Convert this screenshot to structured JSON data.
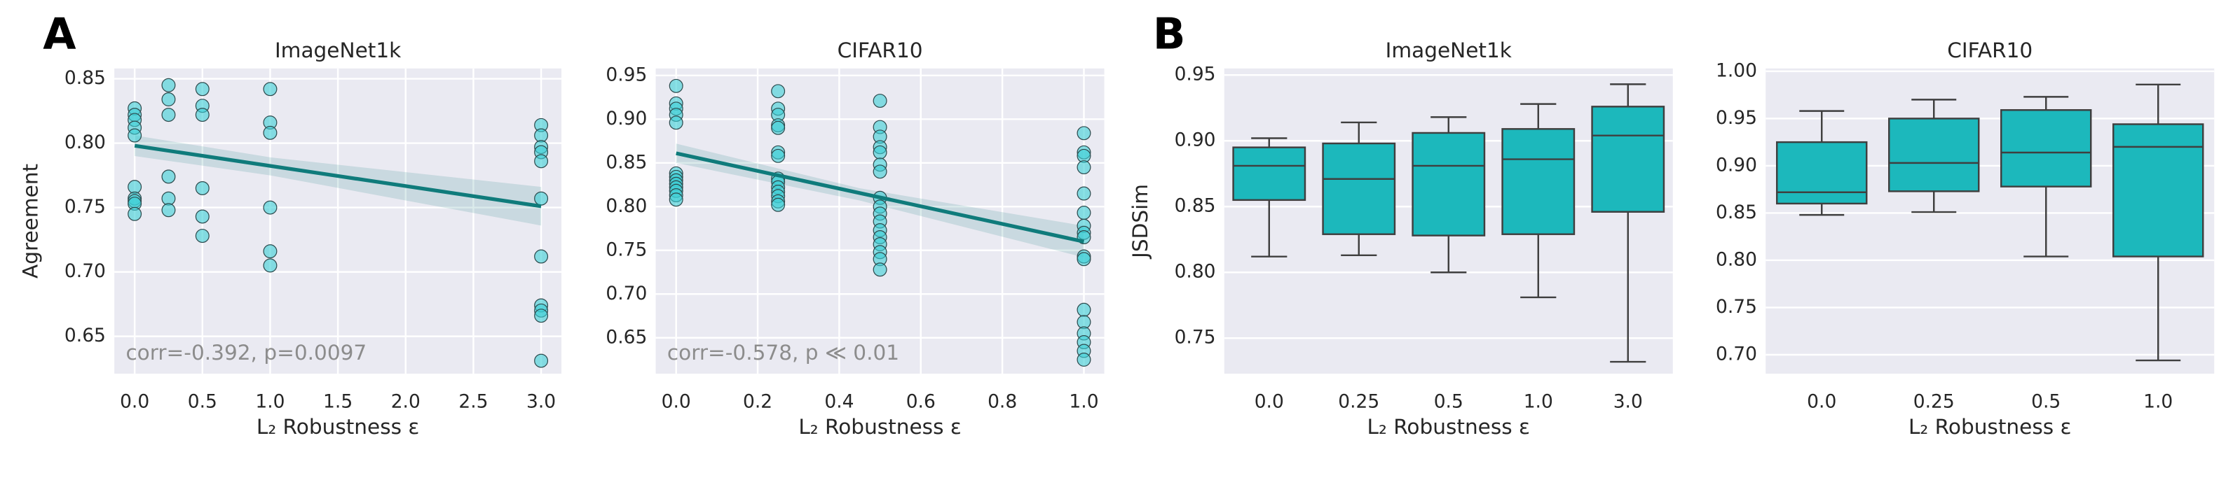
{
  "chart_data": [
    {
      "type": "scatter",
      "panel_label": "A",
      "title": "ImageNet1k",
      "x_label": "L₂ Robustness ε",
      "y_label": "Agreement",
      "annotation": "corr=-0.392, p=0.0097",
      "color": "#3ccfd6",
      "line_color": "#0f7b7b",
      "grid": true,
      "x": [
        0,
        0,
        0,
        0,
        0,
        0,
        0,
        0,
        0,
        0,
        0.25,
        0.25,
        0.25,
        0.25,
        0.25,
        0.25,
        0.5,
        0.5,
        0.5,
        0.5,
        0.5,
        0.5,
        1,
        1,
        1,
        1,
        1,
        1,
        3,
        3,
        3,
        3,
        3,
        3,
        3,
        3,
        3,
        3,
        3
      ],
      "values": [
        0.827,
        0.822,
        0.818,
        0.812,
        0.806,
        0.766,
        0.757,
        0.755,
        0.753,
        0.745,
        0.845,
        0.834,
        0.822,
        0.774,
        0.757,
        0.748,
        0.842,
        0.829,
        0.822,
        0.765,
        0.743,
        0.728,
        0.842,
        0.816,
        0.808,
        0.75,
        0.716,
        0.705,
        0.814,
        0.806,
        0.797,
        0.793,
        0.786,
        0.757,
        0.712,
        0.674,
        0.67,
        0.666,
        0.631
      ],
      "regression": {
        "x": [
          0,
          3
        ],
        "values": [
          0.798,
          0.751
        ]
      },
      "ci": {
        "x": [
          0,
          1,
          3
        ],
        "lower": [
          0.79,
          0.775,
          0.736
        ],
        "upper": [
          0.806,
          0.789,
          0.766
        ]
      },
      "xlim": [
        -0.15,
        3.15
      ],
      "xticks": [
        {
          "value": 0,
          "label": "0.0"
        },
        0.5,
        {
          "value": 1,
          "label": "1.0"
        },
        1.5,
        {
          "value": 2,
          "label": "2.0"
        },
        2.5,
        {
          "value": 3,
          "label": "3.0"
        }
      ],
      "ylim": [
        0.621,
        0.858
      ],
      "yticks": [
        0.65,
        {
          "value": 0.7,
          "label": "0.70"
        },
        0.75,
        {
          "value": 0.8,
          "label": "0.80"
        },
        0.85
      ]
    },
    {
      "type": "scatter",
      "title": "CIFAR10",
      "x_label": "L₂ Robustness ε",
      "annotation": "corr=-0.578, p ≪ 0.01",
      "color": "#3ccfd6",
      "line_color": "#0f7b7b",
      "grid": true,
      "x": [
        0,
        0,
        0,
        0,
        0,
        0,
        0,
        0,
        0,
        0,
        0,
        0,
        0,
        0.25,
        0.25,
        0.25,
        0.25,
        0.25,
        0.25,
        0.25,
        0.25,
        0.25,
        0.25,
        0.25,
        0.25,
        0.25,
        0.25,
        0.5,
        0.5,
        0.5,
        0.5,
        0.5,
        0.5,
        0.5,
        0.5,
        0.5,
        0.5,
        0.5,
        0.5,
        0.5,
        0.5,
        0.5,
        0.5,
        0.5,
        1,
        1,
        1,
        1,
        1,
        1,
        1,
        1,
        1,
        1,
        1,
        1,
        1,
        1,
        1,
        1,
        1
      ],
      "values": [
        0.938,
        0.918,
        0.912,
        0.905,
        0.896,
        0.838,
        0.834,
        0.83,
        0.826,
        0.822,
        0.818,
        0.813,
        0.808,
        0.932,
        0.912,
        0.905,
        0.893,
        0.89,
        0.862,
        0.858,
        0.832,
        0.828,
        0.822,
        0.817,
        0.812,
        0.806,
        0.802,
        0.921,
        0.891,
        0.88,
        0.868,
        0.862,
        0.848,
        0.84,
        0.81,
        0.8,
        0.792,
        0.783,
        0.773,
        0.765,
        0.757,
        0.748,
        0.74,
        0.728,
        0.884,
        0.862,
        0.858,
        0.845,
        0.815,
        0.793,
        0.778,
        0.77,
        0.765,
        0.743,
        0.74,
        0.682,
        0.668,
        0.655,
        0.645,
        0.635,
        0.625
      ],
      "regression": {
        "x": [
          0,
          1
        ],
        "values": [
          0.861,
          0.76
        ]
      },
      "ci": {
        "x": [
          0,
          0.45,
          1
        ],
        "lower": [
          0.85,
          0.807,
          0.742
        ],
        "upper": [
          0.872,
          0.821,
          0.778
        ]
      },
      "xlim": [
        -0.05,
        1.05
      ],
      "xticks": [
        {
          "value": 0,
          "label": "0.0"
        },
        0.2,
        0.4,
        0.6,
        0.8,
        {
          "value": 1,
          "label": "1.0"
        }
      ],
      "ylim": [
        0.609,
        0.958
      ],
      "yticks": [
        0.65,
        {
          "value": 0.7,
          "label": "0.70"
        },
        0.75,
        {
          "value": 0.8,
          "label": "0.80"
        },
        0.85,
        {
          "value": 0.9,
          "label": "0.90"
        },
        0.95
      ]
    },
    {
      "type": "box",
      "panel_label": "B",
      "title": "ImageNet1k",
      "x_label": "L₂ Robustness ε",
      "y_label": "JSDSim",
      "color": "#1cb8bc",
      "grid": true,
      "categories": [
        "0.0",
        "0.25",
        "0.5",
        "1.0",
        "3.0"
      ],
      "boxes": [
        {
          "whislo": 0.812,
          "q1": 0.855,
          "med": 0.881,
          "q3": 0.895,
          "whishi": 0.902
        },
        {
          "whislo": 0.813,
          "q1": 0.829,
          "med": 0.871,
          "q3": 0.898,
          "whishi": 0.914
        },
        {
          "whislo": 0.8,
          "q1": 0.828,
          "med": 0.881,
          "q3": 0.906,
          "whishi": 0.918
        },
        {
          "whislo": 0.781,
          "q1": 0.829,
          "med": 0.886,
          "q3": 0.909,
          "whishi": 0.928
        },
        {
          "whislo": 0.732,
          "q1": 0.846,
          "med": 0.904,
          "q3": 0.926,
          "whishi": 0.943
        }
      ],
      "ylim": [
        0.723,
        0.955
      ],
      "yticks": [
        0.75,
        {
          "value": 0.8,
          "label": "0.80"
        },
        0.85,
        {
          "value": 0.9,
          "label": "0.90"
        },
        0.95
      ]
    },
    {
      "type": "box",
      "title": "CIFAR10",
      "x_label": "L₂ Robustness ε",
      "color": "#1cb8bc",
      "grid": true,
      "categories": [
        "0.0",
        "0.25",
        "0.5",
        "1.0"
      ],
      "boxes": [
        {
          "whislo": 0.848,
          "q1": 0.86,
          "med": 0.872,
          "q3": 0.925,
          "whishi": 0.958
        },
        {
          "whislo": 0.851,
          "q1": 0.873,
          "med": 0.903,
          "q3": 0.95,
          "whishi": 0.97
        },
        {
          "whislo": 0.804,
          "q1": 0.878,
          "med": 0.914,
          "q3": 0.959,
          "whishi": 0.973
        },
        {
          "whislo": 0.694,
          "q1": 0.804,
          "med": 0.92,
          "q3": 0.944,
          "whishi": 0.986
        }
      ],
      "ylim": [
        0.68,
        1.003
      ],
      "yticks": [
        {
          "value": 0.7,
          "label": "0.70"
        },
        0.75,
        {
          "value": 0.8,
          "label": "0.80"
        },
        0.85,
        {
          "value": 0.9,
          "label": "0.90"
        },
        0.95,
        {
          "value": 1,
          "label": "1.00"
        }
      ]
    }
  ]
}
